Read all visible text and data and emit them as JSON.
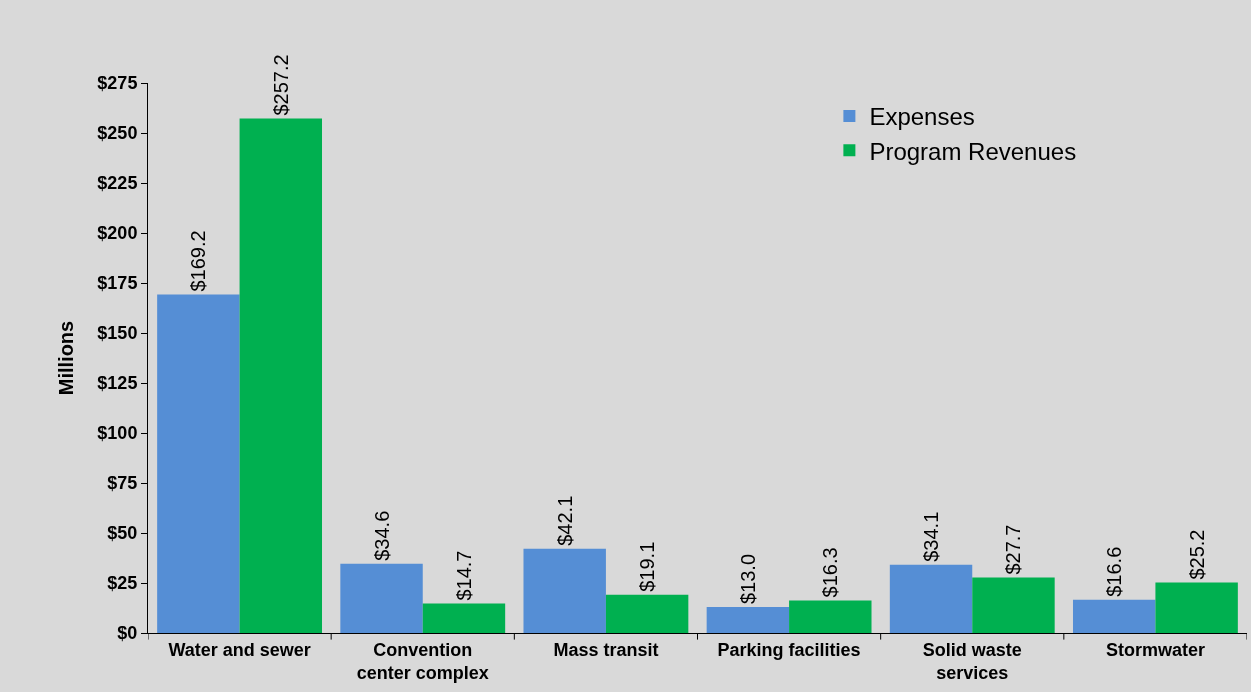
{
  "chart_data": {
    "type": "bar",
    "ylabel": "Millions",
    "categories": [
      "Water and sewer",
      "Convention center complex",
      "Mass transit",
      "Parking facilities",
      "Solid waste services",
      "Stormwater"
    ],
    "series": [
      {
        "name": "Expenses",
        "color": "#558ed5",
        "values": [
          169.2,
          34.6,
          42.1,
          13.0,
          34.1,
          16.6
        ],
        "value_labels": [
          "$169.2",
          "$34.6",
          "$42.1",
          "$13.0",
          "$34.1",
          "$16.6"
        ]
      },
      {
        "name": "Program Revenues",
        "color": "#00b050",
        "values": [
          257.2,
          14.7,
          19.1,
          16.3,
          27.7,
          25.2
        ],
        "value_labels": [
          "$257.2",
          "$14.7",
          "$19.1",
          "$16.3",
          "$27.7",
          "$25.2"
        ]
      }
    ],
    "ylim": [
      0,
      275
    ],
    "yticks": [
      {
        "value": 0,
        "label": "$0"
      },
      {
        "value": 25,
        "label": "$25"
      },
      {
        "value": 50,
        "label": "$50"
      },
      {
        "value": 75,
        "label": "$75"
      },
      {
        "value": 100,
        "label": "$100"
      },
      {
        "value": 125,
        "label": "$125"
      },
      {
        "value": 150,
        "label": "$150"
      },
      {
        "value": 175,
        "label": "$175"
      },
      {
        "value": 200,
        "label": "$200"
      },
      {
        "value": 225,
        "label": "$225"
      },
      {
        "value": 250,
        "label": "$250"
      },
      {
        "value": 275,
        "label": "$275"
      }
    ],
    "grid": false,
    "legend": "top right"
  }
}
